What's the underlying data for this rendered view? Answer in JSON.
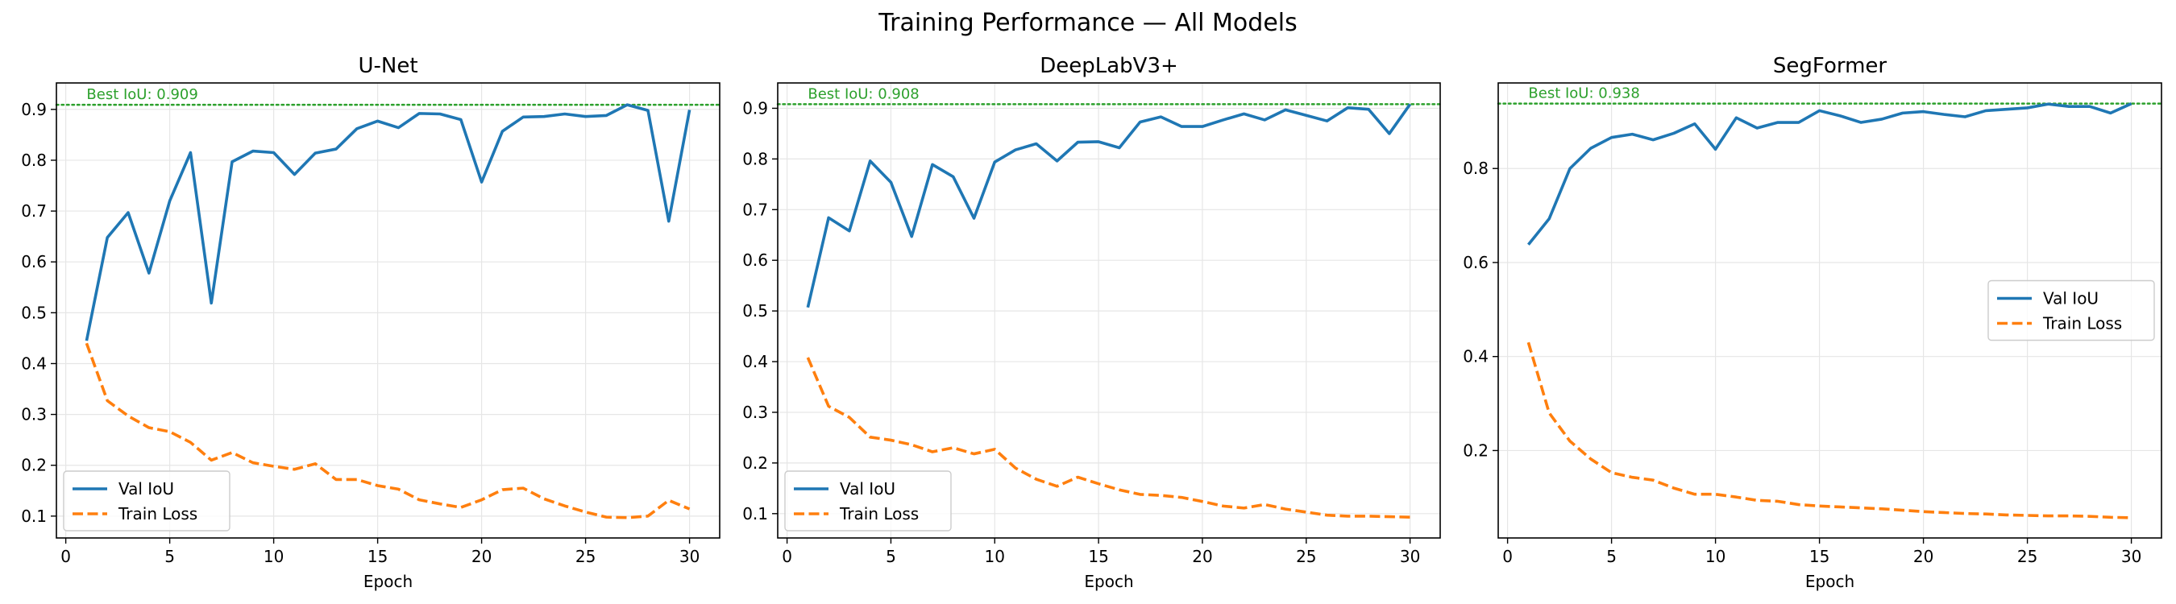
{
  "suptitle": "Training Performance — All Models",
  "colors": {
    "val": "#1f77b4",
    "train": "#ff7f0e",
    "best": "#2ca02c"
  },
  "chart_data": [
    {
      "type": "line",
      "title": "U-Net",
      "xlabel": "Epoch",
      "ylabel": "",
      "xlim": [
        -0.45,
        31.45
      ],
      "ylim": [
        0.057,
        0.952
      ],
      "xticks": [
        0,
        5,
        10,
        15,
        20,
        25,
        30
      ],
      "yticks": [
        0.1,
        0.2,
        0.3,
        0.4,
        0.5,
        0.6,
        0.7,
        0.8,
        0.9
      ],
      "ytick_labels": [
        "0.1",
        "0.2",
        "0.3",
        "0.4",
        "0.5",
        "0.6",
        "0.7",
        "0.8",
        "0.9"
      ],
      "grid": true,
      "legend_position": "lower left",
      "best_iou": 0.909,
      "best_label": "Best IoU: 0.909",
      "x": [
        1,
        2,
        3,
        4,
        5,
        6,
        7,
        8,
        9,
        10,
        11,
        12,
        13,
        14,
        15,
        16,
        17,
        18,
        19,
        20,
        21,
        22,
        23,
        24,
        25,
        26,
        27,
        28,
        29,
        30
      ],
      "series": [
        {
          "name": "Val IoU",
          "style": "solid",
          "values": [
            0.445,
            0.648,
            0.697,
            0.578,
            0.72,
            0.815,
            0.519,
            0.797,
            0.818,
            0.815,
            0.772,
            0.814,
            0.822,
            0.862,
            0.877,
            0.864,
            0.892,
            0.891,
            0.88,
            0.757,
            0.857,
            0.885,
            0.886,
            0.891,
            0.886,
            0.888,
            0.909,
            0.898,
            0.68,
            0.899
          ]
        },
        {
          "name": "Train Loss",
          "style": "dashed",
          "values": [
            0.44,
            0.327,
            0.297,
            0.274,
            0.266,
            0.245,
            0.21,
            0.225,
            0.205,
            0.198,
            0.192,
            0.203,
            0.172,
            0.172,
            0.16,
            0.153,
            0.132,
            0.124,
            0.117,
            0.132,
            0.152,
            0.155,
            0.134,
            0.12,
            0.108,
            0.098,
            0.097,
            0.1,
            0.131,
            0.114
          ]
        }
      ]
    },
    {
      "type": "line",
      "title": "DeepLabV3+",
      "xlabel": "Epoch",
      "ylabel": "",
      "xlim": [
        -0.45,
        31.45
      ],
      "ylim": [
        0.052,
        0.95
      ],
      "xticks": [
        0,
        5,
        10,
        15,
        20,
        25,
        30
      ],
      "yticks": [
        0.1,
        0.2,
        0.3,
        0.4,
        0.5,
        0.6,
        0.7,
        0.8,
        0.9
      ],
      "ytick_labels": [
        "0.1",
        "0.2",
        "0.3",
        "0.4",
        "0.5",
        "0.6",
        "0.7",
        "0.8",
        "0.9"
      ],
      "grid": true,
      "legend_position": "lower left",
      "best_iou": 0.908,
      "best_label": "Best IoU: 0.908",
      "x": [
        1,
        2,
        3,
        4,
        5,
        6,
        7,
        8,
        9,
        10,
        11,
        12,
        13,
        14,
        15,
        16,
        17,
        18,
        19,
        20,
        21,
        22,
        23,
        24,
        25,
        26,
        27,
        28,
        29,
        30
      ],
      "series": [
        {
          "name": "Val IoU",
          "style": "solid",
          "values": [
            0.507,
            0.684,
            0.658,
            0.796,
            0.754,
            0.647,
            0.789,
            0.765,
            0.683,
            0.794,
            0.818,
            0.83,
            0.796,
            0.833,
            0.834,
            0.822,
            0.873,
            0.883,
            0.864,
            0.864,
            0.877,
            0.889,
            0.877,
            0.897,
            0.886,
            0.875,
            0.901,
            0.898,
            0.85,
            0.908
          ]
        },
        {
          "name": "Train Loss",
          "style": "dashed",
          "values": [
            0.408,
            0.312,
            0.29,
            0.251,
            0.245,
            0.236,
            0.222,
            0.23,
            0.218,
            0.227,
            0.19,
            0.168,
            0.154,
            0.172,
            0.159,
            0.147,
            0.138,
            0.136,
            0.132,
            0.124,
            0.115,
            0.111,
            0.118,
            0.109,
            0.103,
            0.097,
            0.095,
            0.095,
            0.094,
            0.093
          ]
        }
      ]
    },
    {
      "type": "line",
      "title": "SegFormer",
      "xlabel": "Epoch",
      "ylabel": "",
      "xlim": [
        -0.45,
        31.45
      ],
      "ylim": [
        0.014,
        0.982
      ],
      "xticks": [
        0,
        5,
        10,
        15,
        20,
        25,
        30
      ],
      "yticks": [
        0.2,
        0.4,
        0.6,
        0.8
      ],
      "ytick_labels": [
        "0.2",
        "0.4",
        "0.6",
        "0.8"
      ],
      "grid": true,
      "legend_position": "center right",
      "best_iou": 0.938,
      "best_label": "Best IoU: 0.938",
      "x": [
        1,
        2,
        3,
        4,
        5,
        6,
        7,
        8,
        9,
        10,
        11,
        12,
        13,
        14,
        15,
        16,
        17,
        18,
        19,
        20,
        21,
        22,
        23,
        24,
        25,
        26,
        27,
        28,
        29,
        30
      ],
      "series": [
        {
          "name": "Val IoU",
          "style": "solid",
          "values": [
            0.638,
            0.693,
            0.8,
            0.843,
            0.866,
            0.873,
            0.861,
            0.875,
            0.895,
            0.841,
            0.908,
            0.886,
            0.898,
            0.898,
            0.923,
            0.912,
            0.898,
            0.905,
            0.918,
            0.921,
            0.915,
            0.91,
            0.923,
            0.926,
            0.929,
            0.937,
            0.932,
            0.932,
            0.918,
            0.938
          ]
        },
        {
          "name": "Train Loss",
          "style": "dashed",
          "values": [
            0.43,
            0.28,
            0.22,
            0.182,
            0.153,
            0.143,
            0.137,
            0.12,
            0.107,
            0.107,
            0.101,
            0.094,
            0.092,
            0.085,
            0.082,
            0.08,
            0.078,
            0.076,
            0.073,
            0.07,
            0.068,
            0.066,
            0.065,
            0.063,
            0.062,
            0.061,
            0.061,
            0.06,
            0.058,
            0.057
          ]
        }
      ]
    }
  ]
}
